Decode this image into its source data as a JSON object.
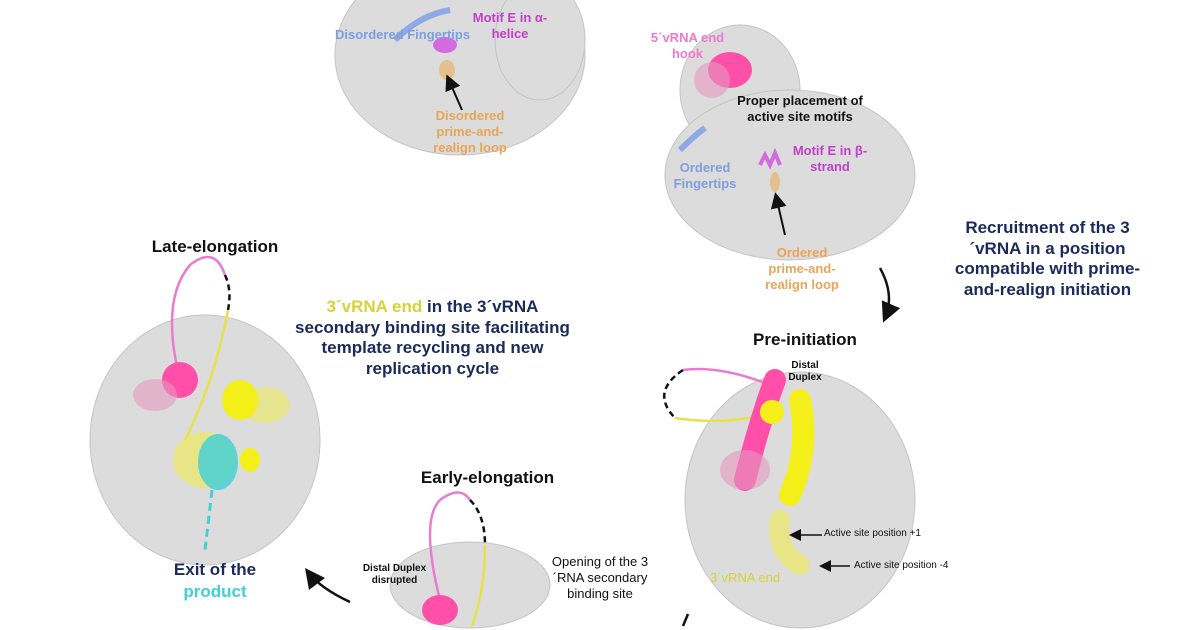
{
  "colors": {
    "protein": "#d9d9d9",
    "pink": "#ff4fa8",
    "yellow": "#f5ef1a",
    "cyan": "#3fd0d8",
    "blue": "#7f9ee0",
    "magenta": "#c23fc8",
    "orange": "#e8a558",
    "navy": "#1b2a5c"
  },
  "top_left": {
    "fingertips": "Disordered Fingertips",
    "motif_e": "Motif E in α-helice",
    "loop": "Disordered prime-and-realign loop"
  },
  "top_right": {
    "hook": "5´vRNA end hook",
    "placement": "Proper placement of active site motifs",
    "motif_e": "Motif E in β-strand",
    "fingertips": "Ordered Fingertips",
    "loop": "Ordered prime-and-realign loop"
  },
  "recruitment": "Recruitment of the 3´vRNA in a position compatible with prime-and-realign initiation",
  "pre_initiation": {
    "title": "Pre-initiation",
    "distal": "Distal Duplex",
    "pos1": "Active site position +1",
    "pos4": "Active site position -4",
    "end": "3´vRNA end"
  },
  "late_elongation": {
    "title": "Late-elongation",
    "caption_hl": "3´vRNA end",
    "caption_rest": " in the 3´vRNA secondary binding site facilitating template recycling and new replication cycle",
    "exit": "Exit of the",
    "product": "product"
  },
  "early_elongation": {
    "title": "Early-elongation",
    "distal": "Distal Duplex disrupted",
    "opening": "Opening of the 3´RNA secondary binding site"
  }
}
